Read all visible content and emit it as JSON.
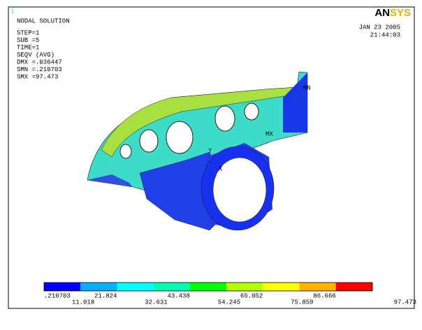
{
  "viewport_label": "1",
  "header": {
    "title": "NODAL SOLUTION",
    "lines": [
      "STEP=1",
      "SUB =5",
      "TIME=1",
      "SEQV     (AVG)",
      "DMX =.036447",
      "SMN =.210703",
      "SMX =97.473"
    ]
  },
  "logo": {
    "prefix": "AN",
    "suffix": "SYS"
  },
  "date": "JAN 23 2005",
  "time": "21:44:03",
  "model_labels": {
    "min": "MN",
    "max": "MX",
    "axis_y": "Y",
    "axis_x": "X"
  },
  "legend": {
    "colors": [
      "#0000ff",
      "#00b2ff",
      "#00ffff",
      "#00ffb2",
      "#00ff00",
      "#b2ff00",
      "#ffff00",
      "#ffb200",
      "#ff0000"
    ],
    "labels": [
      ".210703",
      "11.018",
      "21.824",
      "32.631",
      "43.438",
      "54.245",
      "65.052",
      "75.859",
      "86.666",
      "97.473"
    ]
  }
}
